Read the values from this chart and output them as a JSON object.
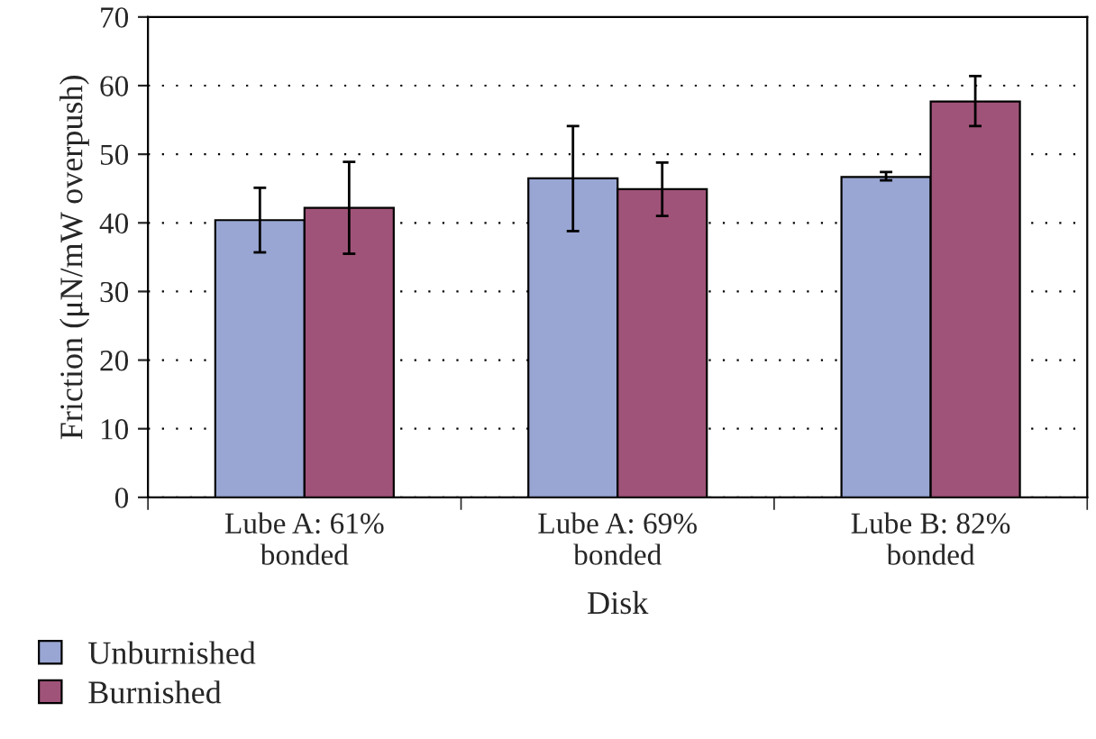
{
  "chart_data": {
    "type": "bar",
    "xlabel": "Disk",
    "ylabel": "Friction (μN/mW overpush)",
    "categories": [
      "Lube A: 61%\nbonded",
      "Lube A: 69%\nbonded",
      "Lube B: 82%\nbonded"
    ],
    "series": [
      {
        "name": "Unburnished",
        "color": "#99a6d3",
        "values": [
          40.4,
          46.5,
          46.7
        ],
        "errors": [
          [
            35.7,
            45.1
          ],
          [
            38.8,
            54.1
          ],
          [
            46.2,
            47.4
          ]
        ]
      },
      {
        "name": "Burnished",
        "color": "#a05378",
        "values": [
          42.2,
          44.9,
          57.7
        ],
        "errors": [
          [
            35.5,
            48.9
          ],
          [
            41.0,
            48.8
          ],
          [
            54.1,
            61.4
          ]
        ]
      }
    ],
    "ylim": [
      0,
      70
    ],
    "yticks": [
      0,
      10,
      20,
      30,
      40,
      50,
      60,
      70
    ],
    "grid": "y",
    "legend": "bottom left"
  }
}
